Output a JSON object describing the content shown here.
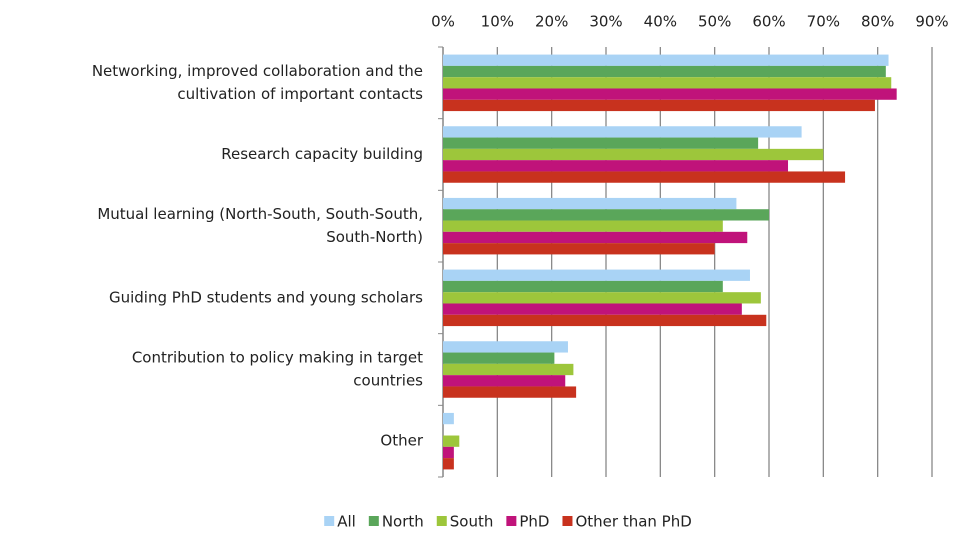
{
  "chart_data": {
    "type": "bar",
    "orientation": "horizontal",
    "categories": [
      [
        "Networking, improved collaboration and the",
        "cultivation of important contacts"
      ],
      [
        "Research capacity building"
      ],
      [
        "Mutual learning (North-South, South-South,",
        "South-North)"
      ],
      [
        "Guiding PhD students and young scholars"
      ],
      [
        "Contribution to policy making in target",
        "countries"
      ],
      [
        "Other"
      ]
    ],
    "series": [
      {
        "name": "All",
        "color": "#a9d3f5",
        "values": [
          82,
          66,
          54,
          56.5,
          23,
          2
        ]
      },
      {
        "name": "North",
        "color": "#5aa65a",
        "values": [
          81.5,
          58,
          60,
          51.5,
          20.5,
          null
        ]
      },
      {
        "name": "South",
        "color": "#9dc63b",
        "values": [
          82.5,
          70,
          51.5,
          58.5,
          24,
          3
        ]
      },
      {
        "name": "PhD",
        "color": "#c0137a",
        "values": [
          83.5,
          63.5,
          56,
          55,
          22.5,
          2
        ]
      },
      {
        "name": "Other than PhD",
        "color": "#c8321e",
        "values": [
          79.5,
          74,
          50,
          59.5,
          24.5,
          2
        ]
      }
    ],
    "xlim": [
      0,
      90
    ],
    "xticks": [
      {
        "value": 0,
        "label": "0%"
      },
      {
        "value": 10,
        "label": "10%"
      },
      {
        "value": 20,
        "label": "20%"
      },
      {
        "value": 30,
        "label": "30%"
      },
      {
        "value": 40,
        "label": "40%"
      },
      {
        "value": 50,
        "label": "50%"
      },
      {
        "value": 60,
        "label": "60%"
      },
      {
        "value": 70,
        "label": "70%"
      },
      {
        "value": 80,
        "label": "80%"
      },
      {
        "value": 90,
        "label": "90%"
      }
    ],
    "grid": true,
    "legend": "bottom"
  }
}
